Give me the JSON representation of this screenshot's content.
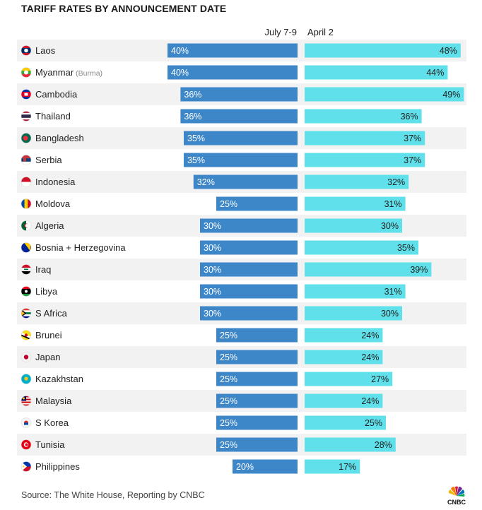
{
  "title": "TARIFF RATES BY ANNOUNCEMENT DATE",
  "source": "Source: The White House, Reporting by CNBC",
  "logo_text": "CNBC",
  "colors": {
    "july": "#3d87c9",
    "april": "#5fe0ea",
    "row_alt": "#f2f2f2"
  },
  "chart_data": {
    "type": "bar",
    "series": [
      {
        "name": "July 7-9",
        "values": [
          40,
          40,
          36,
          36,
          35,
          35,
          32,
          25,
          30,
          30,
          30,
          30,
          30,
          25,
          25,
          25,
          25,
          25,
          25,
          20
        ]
      },
      {
        "name": "April 2",
        "values": [
          48,
          44,
          49,
          36,
          37,
          37,
          32,
          31,
          30,
          35,
          39,
          31,
          30,
          24,
          24,
          27,
          24,
          25,
          28,
          17
        ]
      }
    ],
    "categories": [
      "Laos",
      "Myanmar",
      "Cambodia",
      "Thailand",
      "Bangladesh",
      "Serbia",
      "Indonesia",
      "Moldova",
      "Algeria",
      "Bosnia + Herzegovina",
      "Iraq",
      "Libya",
      "S Africa",
      "Brunei",
      "Japan",
      "Kazakhstan",
      "Malaysia",
      "S Korea",
      "Tunisia",
      "Philippines"
    ],
    "category_notes": [
      "",
      "(Burma)",
      "",
      "",
      "",
      "",
      "",
      "",
      "",
      "",
      "",
      "",
      "",
      "",
      "",
      "",
      "",
      "",
      "",
      ""
    ],
    "flag_icons": [
      "laos-flag-icon",
      "myanmar-flag-icon",
      "cambodia-flag-icon",
      "thailand-flag-icon",
      "bangladesh-flag-icon",
      "serbia-flag-icon",
      "indonesia-flag-icon",
      "moldova-flag-icon",
      "algeria-flag-icon",
      "bosnia-flag-icon",
      "iraq-flag-icon",
      "libya-flag-icon",
      "south-africa-flag-icon",
      "brunei-flag-icon",
      "japan-flag-icon",
      "kazakhstan-flag-icon",
      "malaysia-flag-icon",
      "south-korea-flag-icon",
      "tunisia-flag-icon",
      "philippines-flag-icon"
    ],
    "value_format": "percent",
    "ylim": [
      0,
      50
    ]
  }
}
